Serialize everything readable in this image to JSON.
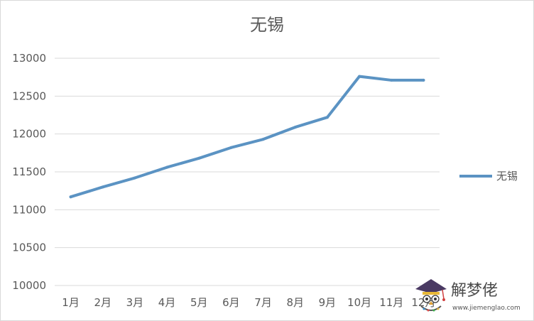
{
  "chart_data": {
    "type": "line",
    "title": "无锡",
    "categories": [
      "1月",
      "2月",
      "3月",
      "4月",
      "5月",
      "6月",
      "7月",
      "8月",
      "9月",
      "10月",
      "11月",
      "12月"
    ],
    "series": [
      {
        "name": "无锡",
        "values": [
          11170,
          11300,
          11420,
          11560,
          11680,
          11820,
          11930,
          12090,
          12220,
          12760,
          12710,
          12710
        ],
        "color": "#5b93c3"
      }
    ],
    "ylim": [
      10000,
      13000
    ],
    "yticks": [
      10000,
      10500,
      11000,
      11500,
      12000,
      12500,
      13000
    ],
    "ytick_labels": [
      "10000",
      "10500",
      "11000",
      "11500",
      "12000",
      "12500",
      "13000"
    ],
    "grid": true,
    "legend_position": "right",
    "xlabel": "",
    "ylabel": ""
  },
  "watermark": {
    "title": "解梦佬",
    "url": "www.jiemenglao.com"
  }
}
